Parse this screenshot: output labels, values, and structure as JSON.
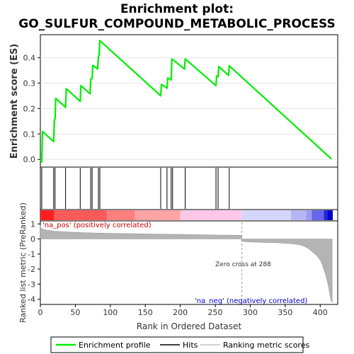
{
  "title_line1": "Enrichment plot:",
  "title_line2": "GO_SULFUR_COMPOUND_METABOLIC_PROCESS",
  "chart_data": [
    {
      "type": "line",
      "panel": "enrichment",
      "ylabel": "Enrichment score (ES)",
      "xlim": [
        0,
        425
      ],
      "ylim": [
        -0.03,
        0.49
      ],
      "yticks": [
        0.0,
        0.1,
        0.2,
        0.3,
        0.4
      ],
      "ytick_labels": [
        "0.0",
        "0.1",
        "0.2",
        "0.3",
        "0.4"
      ],
      "series": [
        {
          "name": "Enrichment profile",
          "color": "#00ee00",
          "x": [
            0,
            2,
            3,
            19,
            20,
            21,
            22,
            36,
            37,
            57,
            58,
            71,
            72,
            74,
            75,
            82,
            83,
            84,
            85,
            172,
            173,
            181,
            182,
            187,
            188,
            206,
            207,
            251,
            252,
            254,
            255,
            269,
            270,
            416
          ],
          "y": [
            0.0,
            -0.01,
            0.11,
            0.07,
            0.155,
            0.16,
            0.24,
            0.205,
            0.278,
            0.228,
            0.29,
            0.258,
            0.315,
            0.318,
            0.37,
            0.355,
            0.405,
            0.41,
            0.467,
            0.25,
            0.295,
            0.28,
            0.32,
            0.312,
            0.395,
            0.355,
            0.395,
            0.29,
            0.328,
            0.325,
            0.365,
            0.33,
            0.368,
            0.002
          ]
        }
      ]
    },
    {
      "type": "scatter",
      "panel": "hits",
      "name": "Hits",
      "hit_positions": [
        2,
        19,
        21,
        36,
        57,
        72,
        74,
        83,
        85,
        172,
        181,
        187,
        189,
        207,
        251,
        254,
        270
      ]
    },
    {
      "type": "heatmap",
      "panel": "rank-bar",
      "bands": [
        {
          "from": 0,
          "to": 20,
          "color": "#ff1f1f"
        },
        {
          "from": 20,
          "to": 95,
          "color": "#ff5a5a"
        },
        {
          "from": 95,
          "to": 135,
          "color": "#ff7f7f"
        },
        {
          "from": 135,
          "to": 200,
          "color": "#ffa4a4"
        },
        {
          "from": 200,
          "to": 288,
          "color": "#ffc8e8"
        },
        {
          "from": 288,
          "to": 358,
          "color": "#d6d6fc"
        },
        {
          "from": 358,
          "to": 380,
          "color": "#b6b6f6"
        },
        {
          "from": 380,
          "to": 388,
          "color": "#9c9cf0"
        },
        {
          "from": 388,
          "to": 405,
          "color": "#6666ea"
        },
        {
          "from": 405,
          "to": 410,
          "color": "#2525d8"
        },
        {
          "from": 410,
          "to": 418,
          "color": "#0000c8"
        }
      ]
    },
    {
      "type": "area",
      "panel": "ranked-metric",
      "ylabel": "Ranked list metric (PreRanked)",
      "xlabel": "Rank in Ordered Dataset",
      "xlim": [
        0,
        425
      ],
      "ylim": [
        -4.35,
        1.2
      ],
      "xticks": [
        0,
        50,
        100,
        150,
        200,
        250,
        300,
        350,
        400
      ],
      "xtick_labels": [
        "0",
        "50",
        "100",
        "150",
        "200",
        "250",
        "300",
        "350",
        "400"
      ],
      "yticks": [
        1,
        0,
        -1,
        -2,
        -3,
        -4
      ],
      "ytick_labels": [
        "1",
        "0",
        "-1",
        "-2",
        "-3",
        "-4"
      ],
      "color": "#b4b4b4",
      "name": "Ranking metric scores",
      "x": [
        0,
        1,
        5,
        10,
        20,
        40,
        60,
        80,
        100,
        130,
        160,
        200,
        240,
        287,
        288,
        300,
        340,
        360,
        370,
        375,
        380,
        385,
        390,
        395,
        400,
        403,
        405,
        408,
        410,
        412,
        414,
        415,
        416,
        417
      ],
      "y": [
        0.92,
        0.7,
        0.62,
        0.58,
        0.52,
        0.46,
        0.42,
        0.39,
        0.37,
        0.35,
        0.33,
        0.3,
        0.27,
        0.24,
        -0.16,
        -0.2,
        -0.26,
        -0.32,
        -0.38,
        -0.45,
        -0.55,
        -0.7,
        -0.9,
        -1.1,
        -1.4,
        -1.7,
        -2.0,
        -2.4,
        -2.8,
        -3.2,
        -3.7,
        -4.0,
        -4.15,
        -4.2
      ],
      "zero_cross_label": "Zero cross at 288",
      "zero_cross": 288,
      "pos_label": "'na_pos' (positively correlated)",
      "neg_label": "'na_neg' (negatively correlated)",
      "pos_color": "#cc0000",
      "neg_color": "#0000cc"
    }
  ],
  "legend": {
    "items": [
      {
        "label": "Enrichment profile",
        "color": "#00ee00",
        "kind": "line"
      },
      {
        "label": "Hits",
        "color": "#000000",
        "kind": "line"
      },
      {
        "label": "Ranking metric scores",
        "color": "#c0c0c0",
        "kind": "line"
      }
    ]
  }
}
